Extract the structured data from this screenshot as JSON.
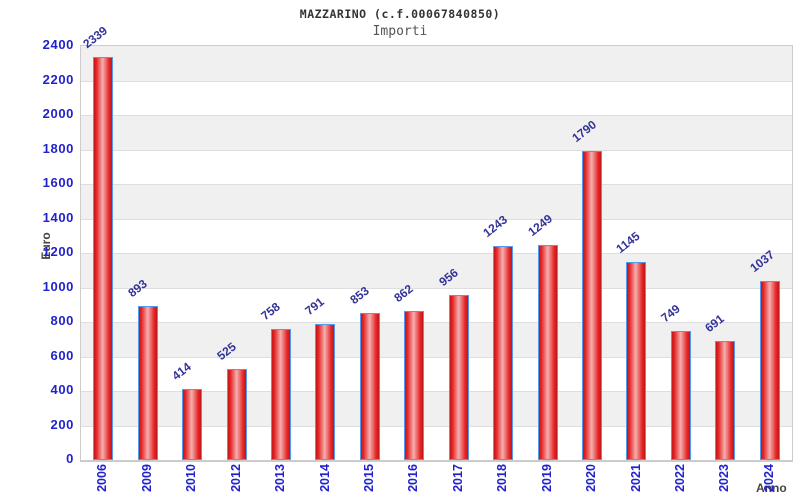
{
  "chart_data": {
    "type": "bar",
    "title": "MAZZARINO (c.f.00067840850)",
    "subtitle": "Importi",
    "xlabel": "Anno",
    "ylabel": "Euro",
    "categories": [
      "2006",
      "2009",
      "2010",
      "2012",
      "2013",
      "2014",
      "2015",
      "2016",
      "2017",
      "2018",
      "2019",
      "2020",
      "2021",
      "2022",
      "2023",
      "2024"
    ],
    "values": [
      2339,
      893,
      414,
      525,
      758,
      791,
      853,
      862,
      956,
      1243,
      1249,
      1790,
      1145,
      749,
      691,
      1037
    ],
    "ylim": [
      0,
      2400
    ],
    "ytick_interval": 200,
    "yticks": [
      0,
      200,
      400,
      600,
      800,
      1000,
      1200,
      1400,
      1600,
      1800,
      2000,
      2200,
      2400
    ],
    "grid": true,
    "legend": false,
    "background_bands": "alternating gray/white every 200 units, gray at top band",
    "style": {
      "tick_label_color": "#2222cc",
      "value_label_color": "#333399",
      "title_color": "#333333",
      "subtitle_color": "#555555",
      "axis_title_color": "#444444",
      "band_gray": "#f0f0f0",
      "gridline_color": "#dedede",
      "plot_border_color": "#cccccc",
      "bar_border_color": "#5599ee",
      "bar_red_dark": "#c01818",
      "bar_red": "#e62525",
      "bar_red_light": "#f4b0b0"
    }
  }
}
